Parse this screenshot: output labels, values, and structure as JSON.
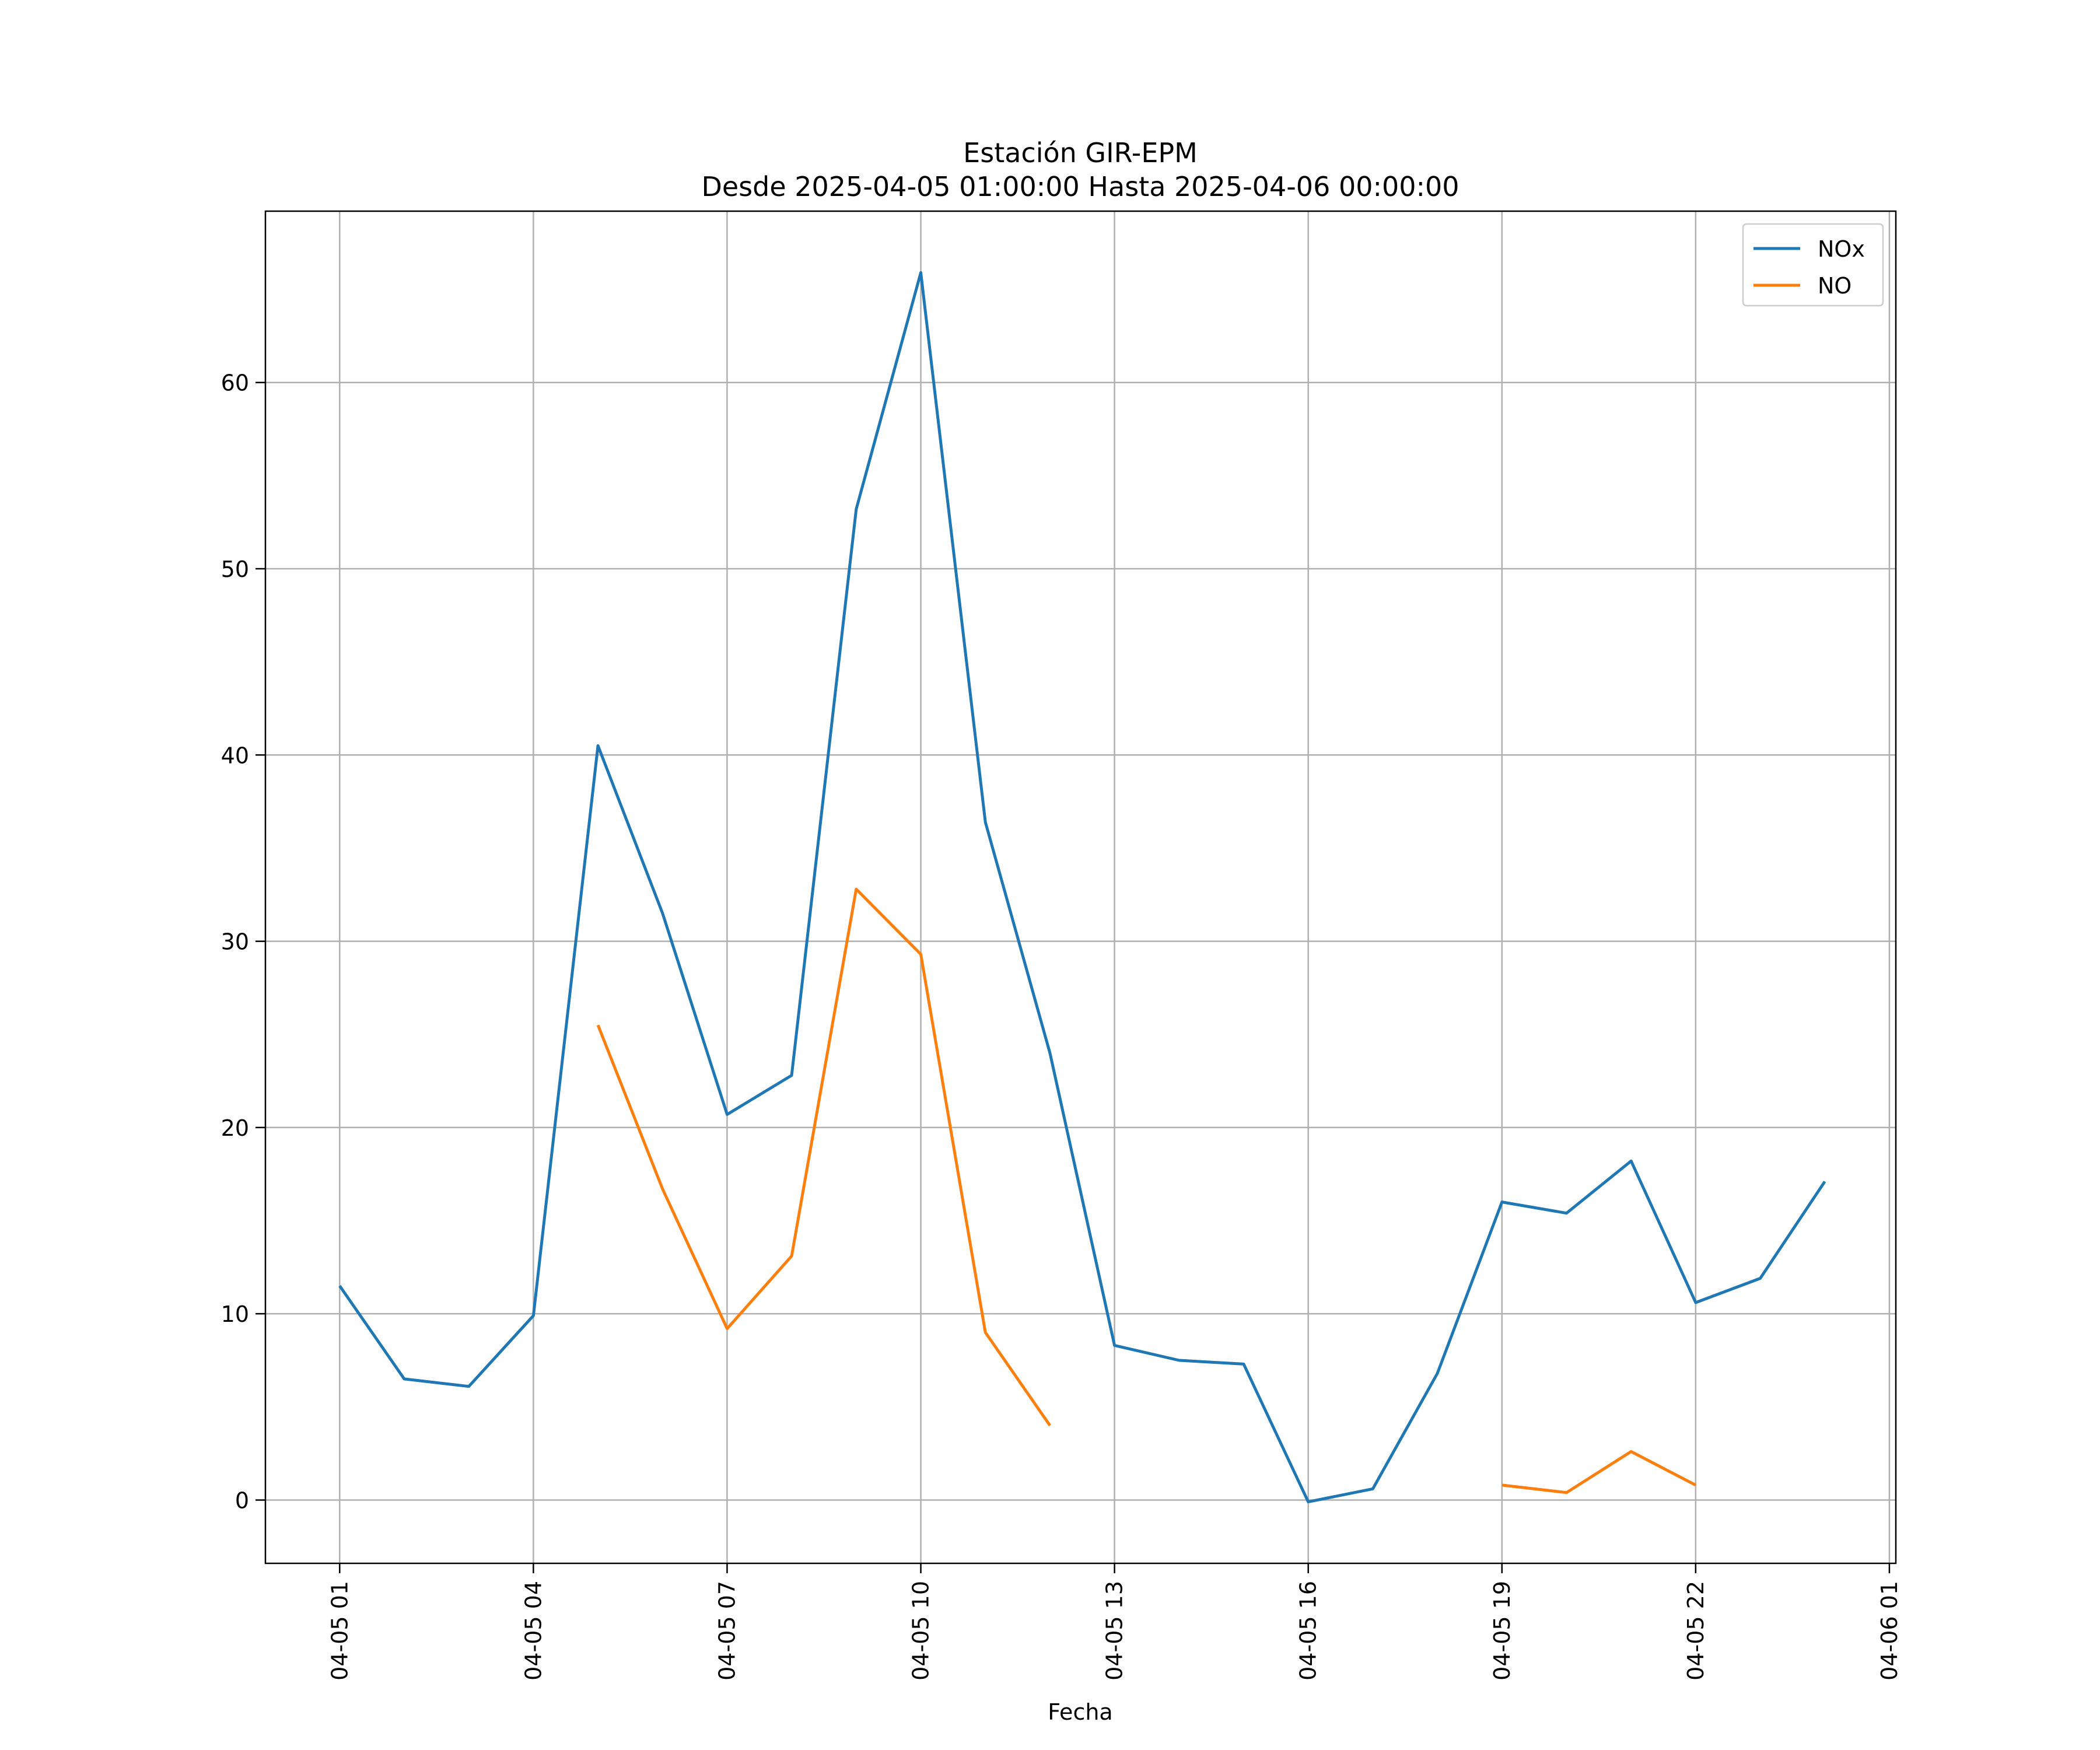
{
  "chart_data": {
    "type": "line",
    "title": "Estación GIR-EPM",
    "subtitle": "Desde 2025-04-05 01:00:00 Hasta 2025-04-06 00:00:00",
    "xlabel": "Fecha",
    "ylabel": "",
    "x": [
      "2025-04-05 01:00",
      "2025-04-05 02:00",
      "2025-04-05 03:00",
      "2025-04-05 04:00",
      "2025-04-05 05:00",
      "2025-04-05 06:00",
      "2025-04-05 07:00",
      "2025-04-05 08:00",
      "2025-04-05 09:00",
      "2025-04-05 10:00",
      "2025-04-05 11:00",
      "2025-04-05 12:00",
      "2025-04-05 13:00",
      "2025-04-05 14:00",
      "2025-04-05 15:00",
      "2025-04-05 16:00",
      "2025-04-05 17:00",
      "2025-04-05 18:00",
      "2025-04-05 19:00",
      "2025-04-05 20:00",
      "2025-04-05 21:00",
      "2025-04-05 22:00",
      "2025-04-05 23:00",
      "2025-04-06 00:00"
    ],
    "series": [
      {
        "name": "NOx",
        "color": "#1f77b4",
        "values": [
          11.5,
          6.5,
          6.1,
          9.9,
          40.5,
          31.5,
          20.7,
          22.8,
          53.2,
          65.9,
          36.4,
          24.0,
          8.3,
          7.5,
          7.3,
          -0.1,
          0.6,
          6.8,
          16.0,
          15.4,
          18.2,
          10.6,
          11.9,
          17.1
        ]
      },
      {
        "name": "NO",
        "color": "#ff7f0e",
        "values": [
          null,
          null,
          null,
          null,
          25.5,
          16.7,
          9.2,
          13.1,
          32.8,
          29.3,
          9.0,
          4.0,
          null,
          null,
          null,
          null,
          null,
          null,
          0.8,
          0.4,
          2.6,
          0.8,
          null,
          null
        ]
      }
    ],
    "xticks": [
      "04-05 01",
      "04-05 04",
      "04-05 07",
      "04-05 10",
      "04-05 13",
      "04-05 16",
      "04-05 19",
      "04-05 22",
      "04-06 01"
    ],
    "xtick_hours": [
      0,
      3,
      6,
      9,
      12,
      15,
      18,
      21,
      24
    ],
    "xlim_hours": [
      -1.15,
      24.1
    ],
    "yticks": [
      0,
      10,
      20,
      30,
      40,
      50,
      60
    ],
    "ylim": [
      -3.4,
      69.2
    ],
    "grid": true,
    "legend_position": "upper right"
  }
}
